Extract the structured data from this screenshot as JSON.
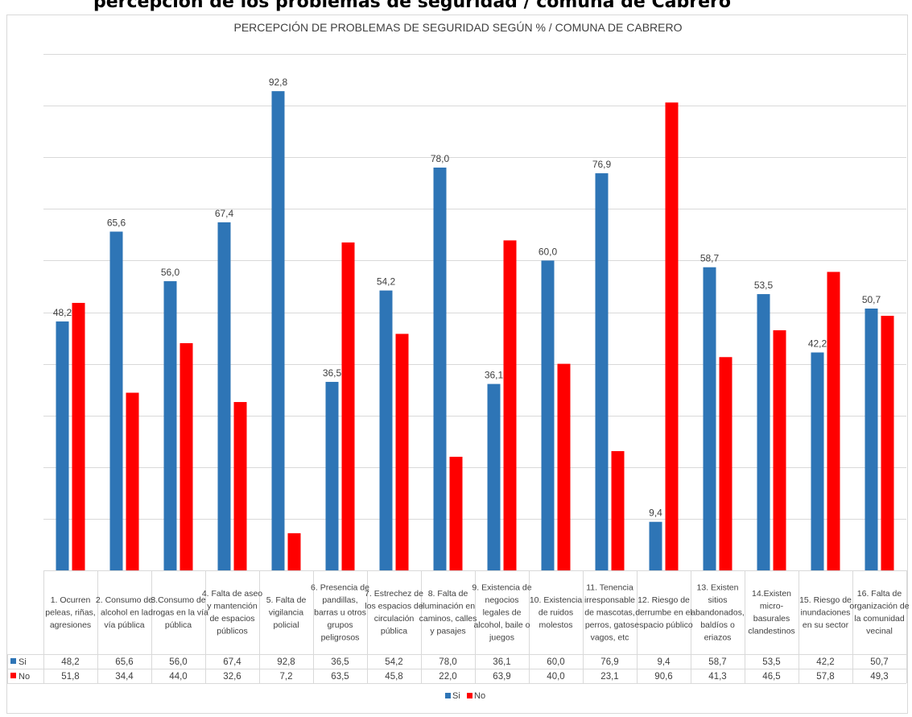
{
  "top_heading": "percepción de los problemas de seguridad / comuna de Cabrero",
  "colors": {
    "si": "#2e75b6",
    "no": "#ff0000",
    "grid": "#d9d9d9",
    "text": "#404040"
  },
  "chart_data": {
    "type": "bar",
    "title": "PERCEPCIÓN DE PROBLEMAS DE SEGURIDAD SEGÚN % / COMUNA DE CABRERO",
    "ylim": [
      0,
      100
    ],
    "grid": true,
    "legend_position": "bottom",
    "categories": [
      "1. Ocurren peleas, riñas, agresiones",
      "2. Consumo de alcohol en la vía pública",
      "3.Consumo de drogas en la vía pública",
      "4. Falta de aseo y mantención de espacios públicos",
      "5. Falta de vigilancia policial",
      "6. Presencia de pandillas, barras u otros grupos peligrosos",
      "7. Estrechez de los espacios de circulación pública",
      "8. Falta de iluminación en caminos, calles y pasajes",
      "9. Existencia de negocios legales de alcohol, baile o juegos",
      "10. Existencia de ruidos molestos",
      "11. Tenencia irresponsable de mascotas, perros, gatos vagos, etc",
      "12. Riesgo de derrumbe en el espacio público",
      "13. Existen sitios abandonados, baldíos o eriazos",
      "14.Existen micro-basurales clandestinos",
      "15. Riesgo de inundaciones en su sector",
      "16. Falta de organización de la comunidad vecinal"
    ],
    "category_lines": [
      [
        "1. Ocurren",
        "peleas, riñas,",
        "agresiones"
      ],
      [
        "2. Consumo de",
        "alcohol en la",
        "vía pública"
      ],
      [
        "3.Consumo de",
        "drogas en la vía",
        "pública"
      ],
      [
        "4. Falta de aseo",
        "y mantención",
        "de espacios",
        "públicos"
      ],
      [
        "5. Falta de",
        "vigilancia",
        "policial"
      ],
      [
        "6. Presencia de",
        "pandillas,",
        "barras u otros",
        "grupos",
        "peligrosos"
      ],
      [
        "7. Estrechez de",
        "los espacios de",
        "circulación",
        "pública"
      ],
      [
        "8. Falta de",
        "iluminación en",
        "caminos, calles",
        "y pasajes"
      ],
      [
        "9. Existencia de",
        "negocios",
        "legales de",
        "alcohol, baile o",
        "juegos"
      ],
      [
        "10. Existencia",
        "de ruidos",
        "molestos"
      ],
      [
        "11. Tenencia",
        "irresponsable",
        "de mascotas,",
        "perros, gatos",
        "vagos, etc"
      ],
      [
        "12. Riesgo de",
        "derrumbe en el",
        "espacio público"
      ],
      [
        "13. Existen",
        "sitios",
        "abandonados,",
        "baldíos o",
        "eriazos"
      ],
      [
        "14.Existen",
        "micro-",
        "basurales",
        "clandestinos"
      ],
      [
        "15. Riesgo de",
        "inundaciones",
        "en su sector"
      ],
      [
        "16. Falta de",
        "organización de",
        "la comunidad",
        "vecinal"
      ]
    ],
    "series": [
      {
        "name": "Si",
        "color": "#2e75b6",
        "values": [
          48.2,
          65.6,
          56.0,
          67.4,
          92.8,
          36.5,
          54.2,
          78.0,
          36.1,
          60.0,
          76.9,
          9.4,
          58.7,
          53.5,
          42.2,
          50.7
        ],
        "labels": [
          "48,2",
          "65,6",
          "56,0",
          "67,4",
          "92,8",
          "36,5",
          "54,2",
          "78,0",
          "36,1",
          "60,0",
          "76,9",
          "9,4",
          "58,7",
          "53,5",
          "42,2",
          "50,7"
        ]
      },
      {
        "name": "No",
        "color": "#ff0000",
        "values": [
          51.8,
          34.4,
          44.0,
          32.6,
          7.2,
          63.5,
          45.8,
          22.0,
          63.9,
          40.0,
          23.1,
          90.6,
          41.3,
          46.5,
          57.8,
          49.3
        ],
        "labels": [
          "51,8",
          "34,4",
          "44,0",
          "32,6",
          "7,2",
          "63,5",
          "45,8",
          "22,0",
          "63,9",
          "40,0",
          "23,1",
          "90,6",
          "41,3",
          "46,5",
          "57,8",
          "49,3"
        ]
      }
    ]
  }
}
